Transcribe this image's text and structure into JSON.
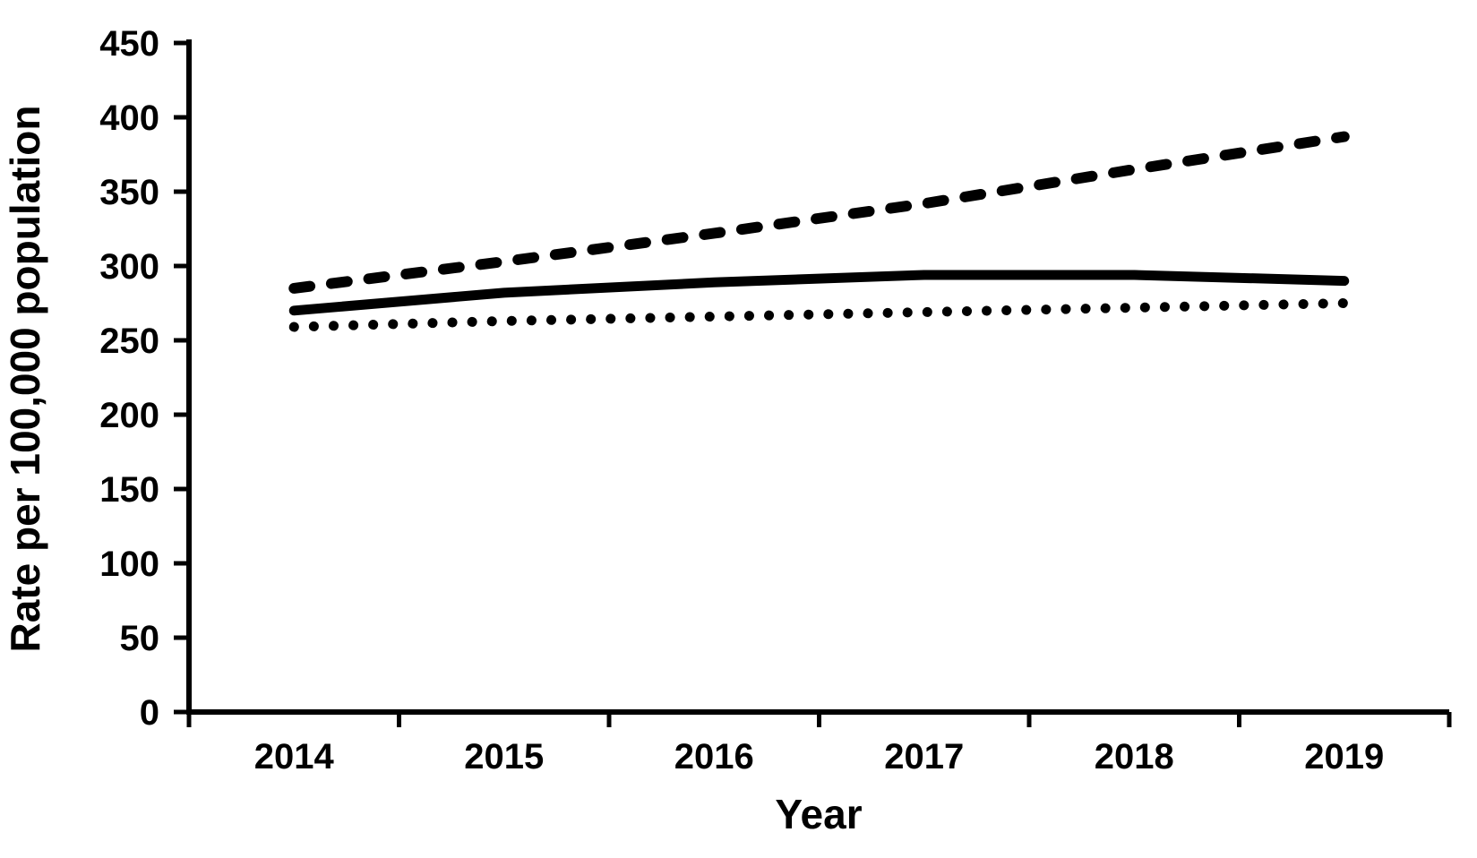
{
  "chart_data": {
    "type": "line",
    "title": "",
    "xlabel": "Year",
    "ylabel": "Rate per 100,000 population",
    "categories": [
      "2014",
      "2015",
      "2016",
      "2017",
      "2018",
      "2019"
    ],
    "series": [
      {
        "name": "upper-dashed-series",
        "style": "dashed",
        "values": [
          285,
          303,
          322,
          342,
          365,
          387
        ]
      },
      {
        "name": "middle-solid-series",
        "style": "solid",
        "values": [
          270,
          282,
          289,
          294,
          294,
          290
        ]
      },
      {
        "name": "lower-dotted-series",
        "style": "dotted",
        "values": [
          259,
          263,
          266,
          269,
          272,
          275
        ]
      }
    ],
    "y_ticks": [
      "0",
      "50",
      "100",
      "150",
      "200",
      "250",
      "300",
      "350",
      "400",
      "450"
    ],
    "ylim": [
      0,
      450
    ],
    "grid": false,
    "legend": "none",
    "line_color": "#000000",
    "background": "#ffffff"
  }
}
